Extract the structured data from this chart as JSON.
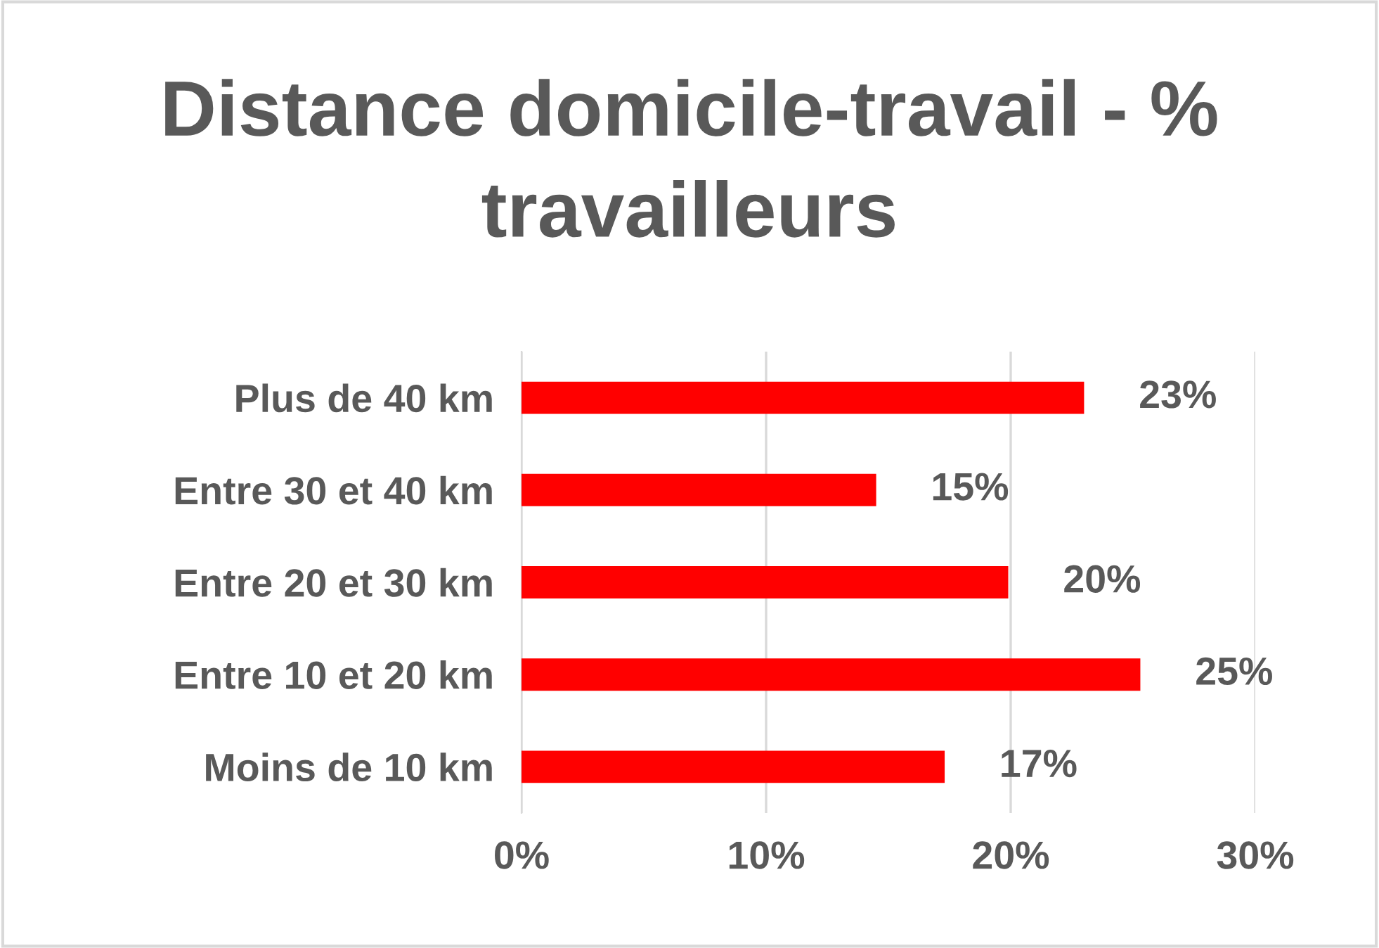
{
  "chart_data": {
    "type": "bar",
    "orientation": "horizontal",
    "title": "Distance domicile-travail - % travailleurs",
    "categories": [
      "Plus de 40 km",
      "Entre 30 et 40 km",
      "Entre 20 et 30 km",
      "Entre 10 et 20 km",
      "Moins de 10 km"
    ],
    "values": [
      23.0,
      14.5,
      19.9,
      25.3,
      17.3
    ],
    "value_labels": [
      "23%",
      "15%",
      "20%",
      "25%",
      "17%"
    ],
    "color": "#ff0000",
    "xlim": [
      0,
      30
    ],
    "xticks": [
      {
        "value": 0,
        "label": "0%"
      },
      {
        "value": 10,
        "label": "10%"
      },
      {
        "value": 20,
        "label": "20%"
      },
      {
        "value": 30,
        "label": "30%"
      }
    ],
    "grid": "x",
    "legend": false
  }
}
